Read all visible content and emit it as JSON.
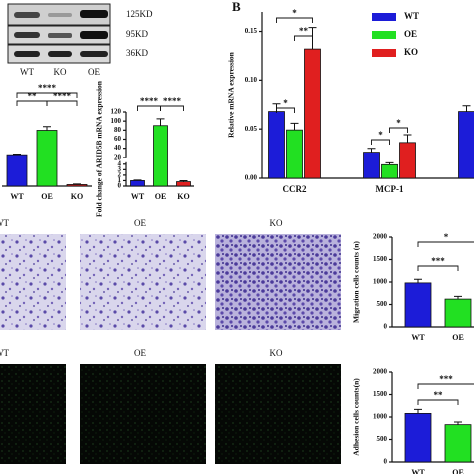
{
  "blot": {
    "markers": [
      "125KD",
      "95KD",
      "36KD"
    ],
    "lanes": [
      "WT",
      "KO",
      "OE"
    ]
  },
  "images": {
    "migration_labels": [
      "WT",
      "OE",
      "KO"
    ],
    "adhesion_labels": [
      "WT",
      "OE",
      "KO"
    ]
  },
  "chart_data": [
    {
      "type": "bar",
      "categories": [
        "WT",
        "OE",
        "KO"
      ],
      "values": [
        1.0,
        1.8,
        0.05
      ],
      "errors": [
        0.02,
        0.12,
        0.02
      ],
      "colors": [
        "#1c1cd8",
        "#22e022",
        "#e01f1f"
      ],
      "ylim": [
        0,
        2.4
      ],
      "annotations": [
        "****",
        "**",
        "****"
      ]
    },
    {
      "type": "bar",
      "ylabel": "Fold change of ARID5B mRNA expression",
      "categories": [
        "WT",
        "OE",
        "KO"
      ],
      "values": [
        1,
        90,
        0.8
      ],
      "errors": [
        0.1,
        15,
        0.2
      ],
      "colors": [
        "#1c1cd8",
        "#22e022",
        "#e01f1f"
      ],
      "ylim": [
        0,
        120
      ],
      "axis_break": [
        4,
        20
      ],
      "yticks": [
        0,
        1,
        2,
        3,
        4,
        20,
        40,
        60,
        80,
        100,
        120
      ],
      "annotations": [
        "****",
        "****"
      ]
    },
    {
      "type": "grouped_bar",
      "title": "B",
      "ylabel": "Relative mRNA expression",
      "categories": [
        "CCR2",
        "MCP-1",
        null
      ],
      "series": [
        {
          "name": "WT",
          "color": "#1c1cd8",
          "values": [
            0.068,
            0.026,
            0.068
          ],
          "errors": [
            0.008,
            0.004,
            0.006
          ]
        },
        {
          "name": "OE",
          "color": "#22e022",
          "values": [
            0.049,
            0.014,
            null
          ],
          "errors": [
            0.007,
            0.002,
            null
          ]
        },
        {
          "name": "KO",
          "color": "#e01f1f",
          "values": [
            0.132,
            0.036,
            null
          ],
          "errors": [
            0.022,
            0.008,
            null
          ]
        }
      ],
      "ylim": [
        0,
        0.17
      ],
      "yticks": [
        {
          "value": 0,
          "label": "0.00"
        },
        {
          "value": 0.05,
          "label": "0.05"
        },
        {
          "value": 0.1,
          "label": "0.10"
        },
        {
          "value": 0.15,
          "label": "0.15"
        }
      ],
      "annotations": [
        "*",
        "**",
        "*",
        "*",
        "*"
      ]
    },
    {
      "type": "bar",
      "ylabel": "Migration cells counts (n)",
      "categories": [
        "WT",
        "OE"
      ],
      "values": [
        980,
        620
      ],
      "errors": [
        80,
        60
      ],
      "colors": [
        "#1c1cd8",
        "#22e022"
      ],
      "ylim": [
        0,
        2000
      ],
      "yticks": [
        0,
        500,
        1000,
        1500,
        2000
      ],
      "annotations": [
        "***",
        "*"
      ]
    },
    {
      "type": "bar",
      "ylabel": "Adhesion cells counts(n)",
      "categories": [
        "WT",
        "OE"
      ],
      "values": [
        1080,
        830
      ],
      "errors": [
        90,
        60
      ],
      "colors": [
        "#1c1cd8",
        "#22e022"
      ],
      "ylim": [
        0,
        2000
      ],
      "yticks": [
        0,
        500,
        1000,
        1500,
        2000
      ],
      "annotations": [
        "**",
        "***"
      ]
    }
  ]
}
